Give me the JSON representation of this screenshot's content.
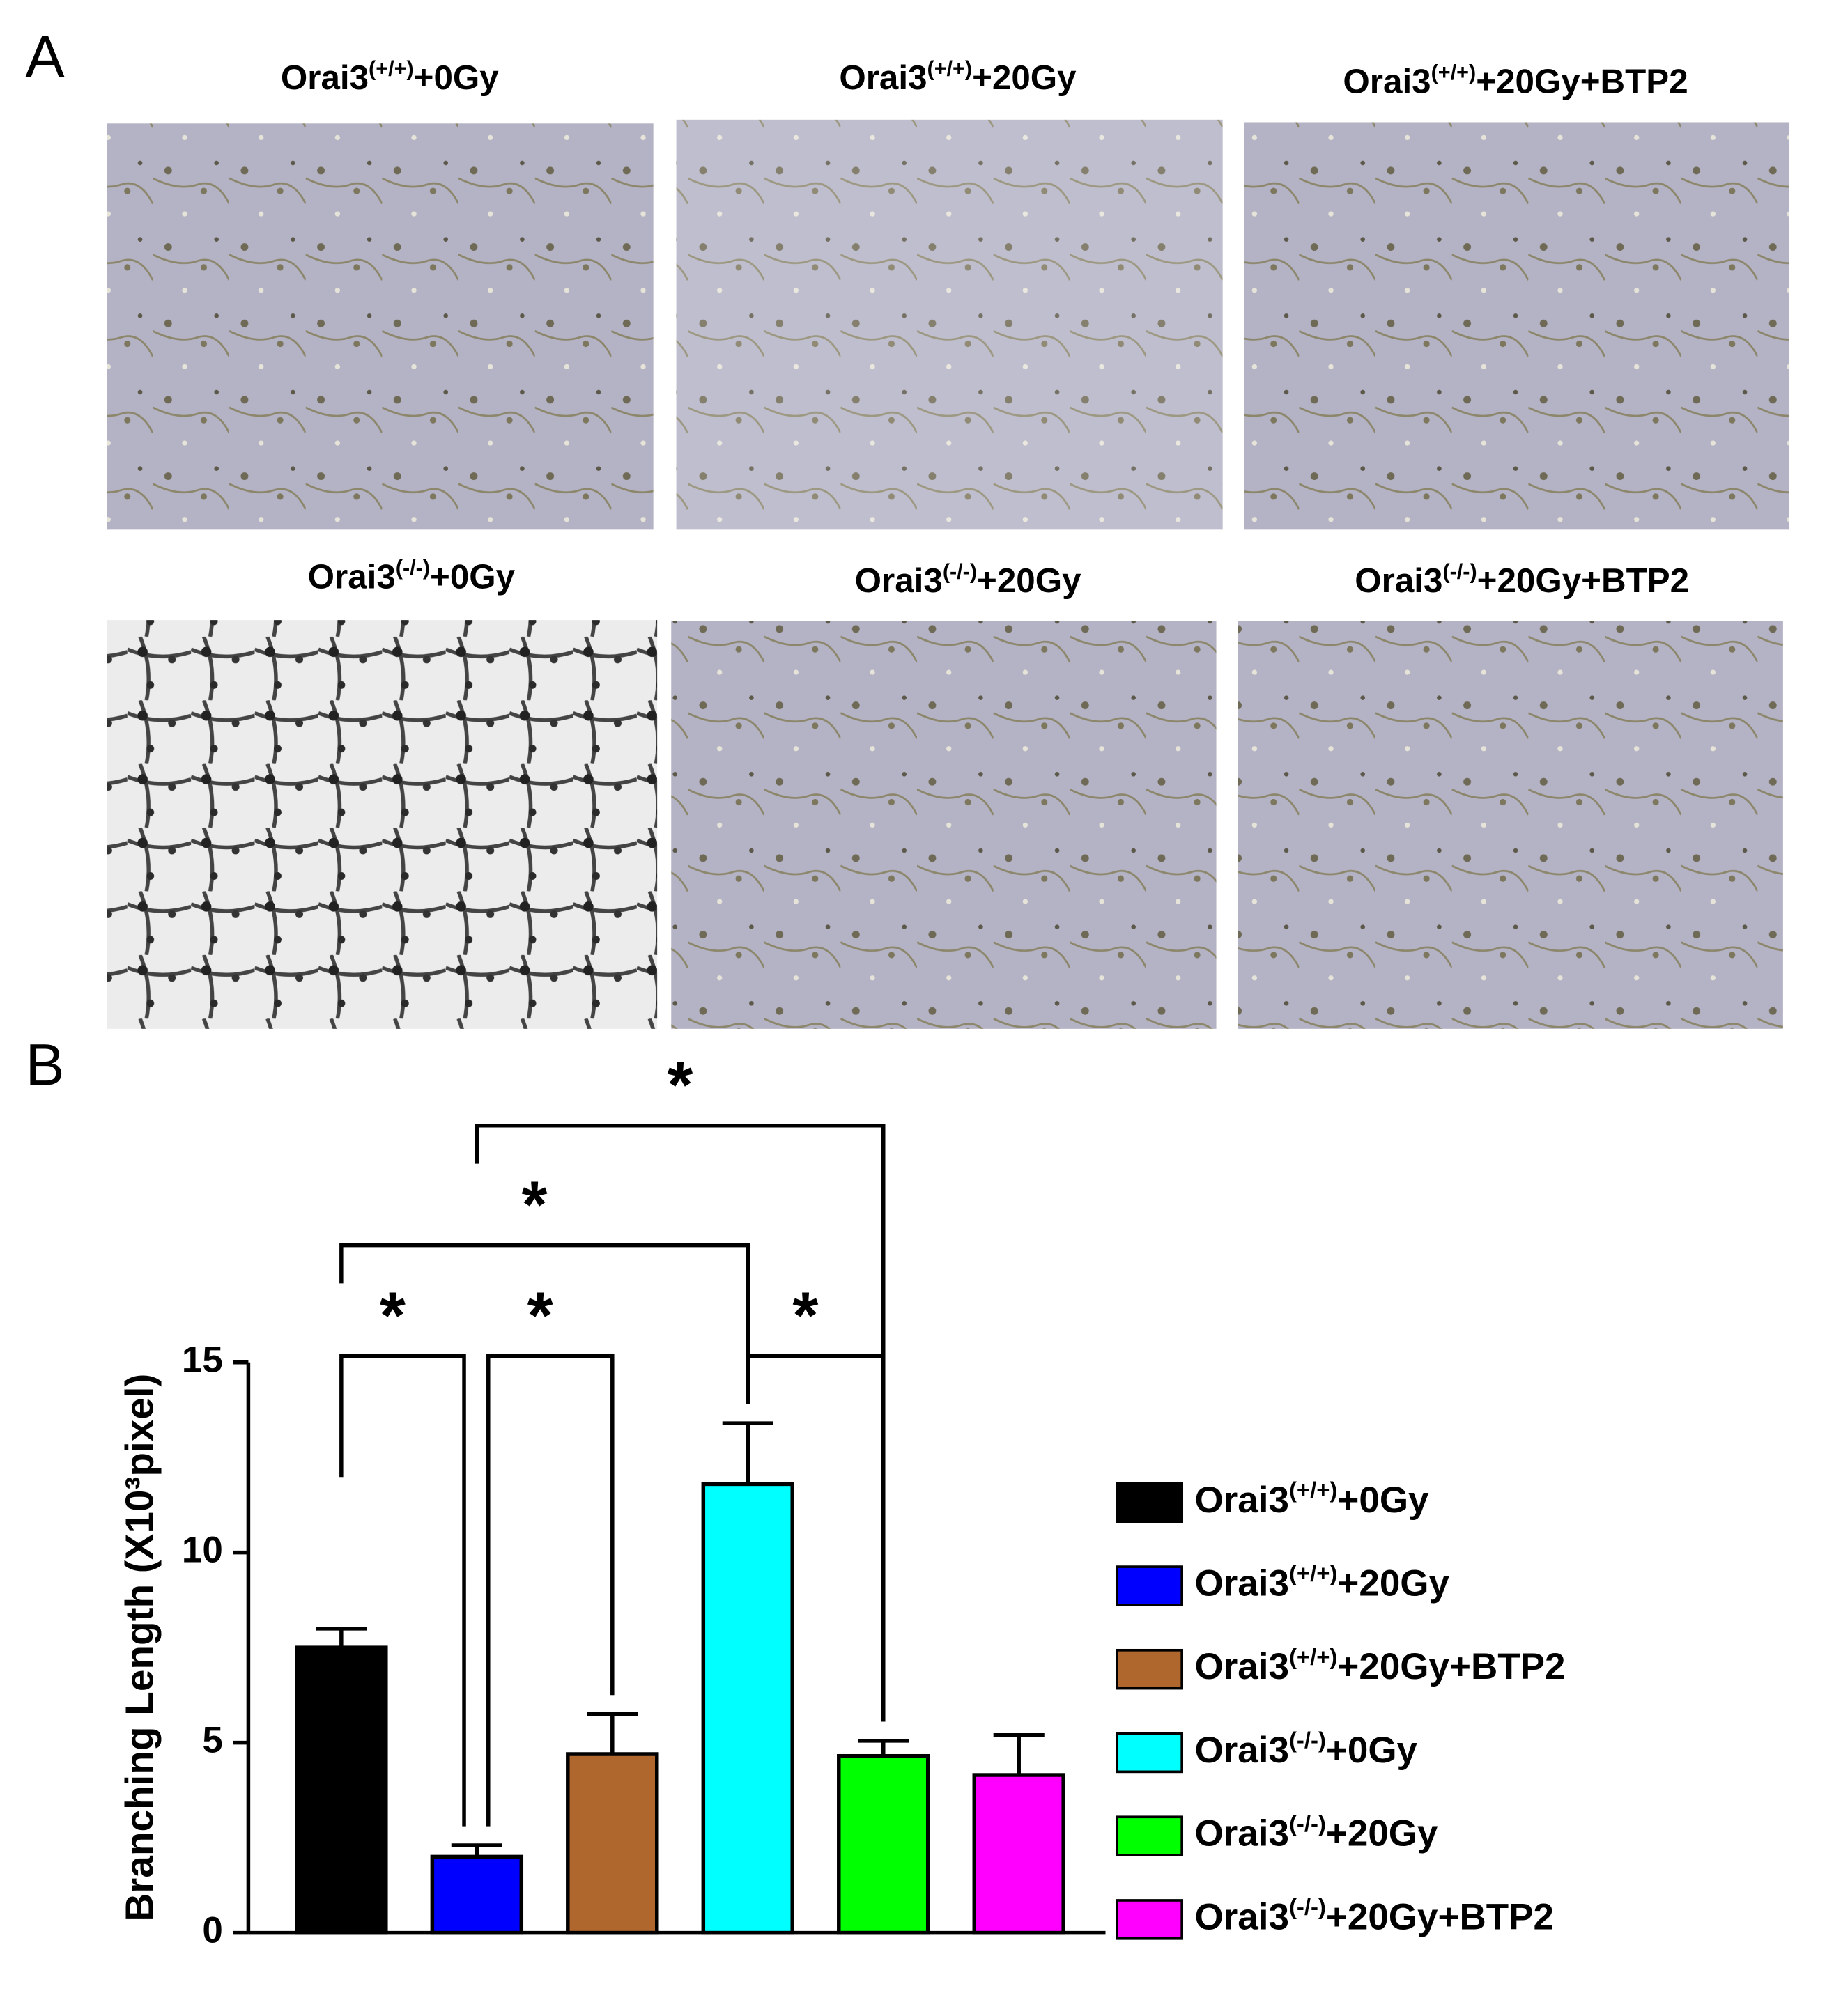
{
  "panel_labels": [
    "A",
    "B"
  ],
  "panel_a": {
    "titles": [
      "Orai3(+/+)+0Gy",
      "Orai3(+/+)+20Gy",
      "Orai3(+/+)+20Gy+BTP2",
      "Orai3(-/-)+0Gy",
      "Orai3(-/-)+20Gy",
      "Orai3(-/-)+20Gy+BTP2"
    ]
  },
  "chart_data": {
    "type": "bar",
    "y_label": "Branching Length (X10³pixel)",
    "ylim": [
      0,
      15
    ],
    "yticks": [
      0,
      5,
      10,
      15
    ],
    "series": [
      {
        "name": "Orai3(+/+)+0Gy",
        "color": "#000000",
        "values": [
          7.5
        ],
        "errors": [
          0.5
        ]
      },
      {
        "name": "Orai3(+/+)+20Gy",
        "color": "#0000ff",
        "values": [
          2.0
        ],
        "errors": [
          0.3
        ]
      },
      {
        "name": "Orai3(+/+)+20Gy+BTP2",
        "color": "#b0672e",
        "values": [
          4.7
        ],
        "errors": [
          1.05
        ]
      },
      {
        "name": "Orai3(-/-)+0Gy",
        "color": "#00ffff",
        "values": [
          11.8
        ],
        "errors": [
          1.6
        ]
      },
      {
        "name": "Orai3(-/-)+20Gy",
        "color": "#00ff00",
        "values": [
          4.65
        ],
        "errors": [
          0.4
        ]
      },
      {
        "name": "Orai3(-/-)+20Gy+BTP2",
        "color": "#ff00ff",
        "values": [
          4.15
        ],
        "errors": [
          1.05
        ]
      }
    ],
    "significance": [
      {
        "pair": [
          0,
          1
        ],
        "label": "*"
      },
      {
        "pair": [
          1,
          2
        ],
        "label": "*"
      },
      {
        "pair": [
          3,
          4
        ],
        "label": "*"
      },
      {
        "pair": [
          0,
          3
        ],
        "label": "*"
      },
      {
        "pair": [
          1,
          4
        ],
        "label": "*"
      }
    ]
  }
}
